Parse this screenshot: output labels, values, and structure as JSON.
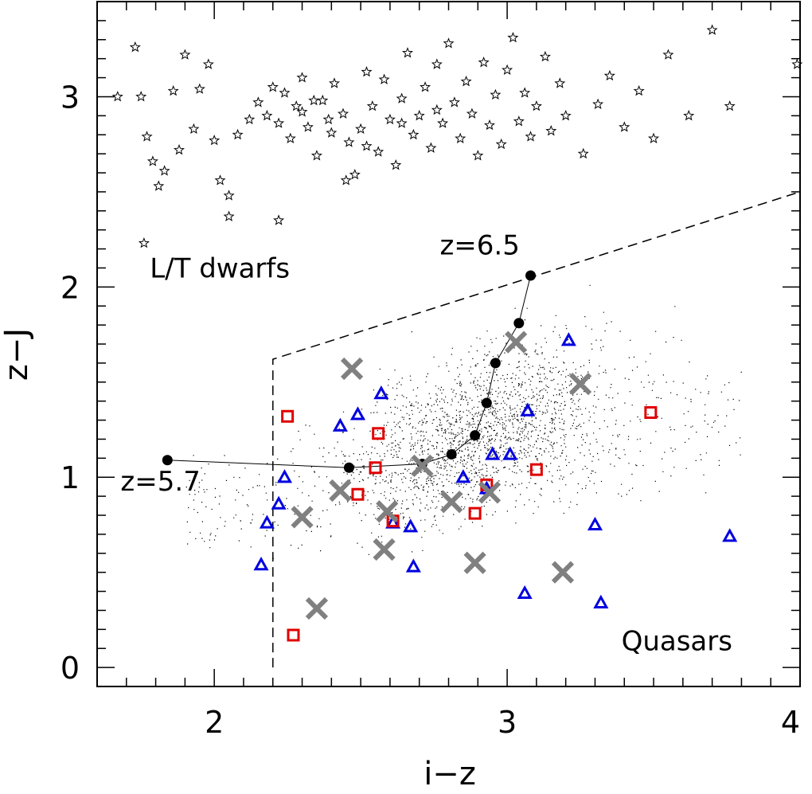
{
  "chart_data": {
    "type": "scatter",
    "xlabel": "i−z",
    "ylabel": "z−J",
    "xlim": [
      1.6,
      4.0
    ],
    "ylim": [
      -0.1,
      3.5
    ],
    "x_ticks": [
      {
        "value": 2,
        "label": "2"
      },
      {
        "value": 3,
        "label": "3"
      },
      {
        "value": 4,
        "label": "4"
      }
    ],
    "y_ticks": [
      {
        "value": 0,
        "label": "0"
      },
      {
        "value": 1,
        "label": "1"
      },
      {
        "value": 2,
        "label": "2"
      },
      {
        "value": 3,
        "label": "3"
      }
    ],
    "grid": false,
    "annotations": [
      {
        "text": "L/T dwarfs",
        "x": 1.78,
        "y": 2.05
      },
      {
        "text": "z=6.5",
        "x": 2.77,
        "y": 2.17
      },
      {
        "text": "z=5.7",
        "x": 1.68,
        "y": 0.93
      },
      {
        "text": "Quasars",
        "x": 3.39,
        "y": 0.09
      }
    ],
    "selection_boundary": {
      "style": "dashed",
      "points": [
        [
          2.2,
          0.0
        ],
        [
          2.2,
          1.62
        ],
        [
          4.0,
          2.5
        ]
      ]
    },
    "track": {
      "name": "",
      "points": [
        [
          1.84,
          1.09
        ],
        [
          2.46,
          1.05
        ],
        [
          2.71,
          1.07
        ],
        [
          2.81,
          1.12
        ],
        [
          2.89,
          1.22
        ],
        [
          2.93,
          1.39
        ],
        [
          2.96,
          1.6
        ],
        [
          3.04,
          1.81
        ],
        [
          3.08,
          2.06
        ]
      ]
    },
    "series": [
      {
        "name": "",
        "marker": "star",
        "color": "#000000",
        "points": [
          [
            1.67,
            3.0
          ],
          [
            1.73,
            3.26
          ],
          [
            1.75,
            3.0
          ],
          [
            1.77,
            2.79
          ],
          [
            1.79,
            2.66
          ],
          [
            1.81,
            2.53
          ],
          [
            1.83,
            2.61
          ],
          [
            1.86,
            3.03
          ],
          [
            1.88,
            2.72
          ],
          [
            1.9,
            3.22
          ],
          [
            1.93,
            2.83
          ],
          [
            1.95,
            3.04
          ],
          [
            1.98,
            3.17
          ],
          [
            2.0,
            2.77
          ],
          [
            2.02,
            2.56
          ],
          [
            2.05,
            2.37
          ],
          [
            2.08,
            2.8
          ],
          [
            2.12,
            2.88
          ],
          [
            2.15,
            2.97
          ],
          [
            2.18,
            2.9
          ],
          [
            2.2,
            3.05
          ],
          [
            2.22,
            2.86
          ],
          [
            2.24,
            3.02
          ],
          [
            2.26,
            2.78
          ],
          [
            2.28,
            2.95
          ],
          [
            2.3,
            3.1
          ],
          [
            2.32,
            2.84
          ],
          [
            2.35,
            2.69
          ],
          [
            2.37,
            2.98
          ],
          [
            2.39,
            2.88
          ],
          [
            2.41,
            3.07
          ],
          [
            2.44,
            2.91
          ],
          [
            2.46,
            2.76
          ],
          [
            2.48,
            2.59
          ],
          [
            2.5,
            2.83
          ],
          [
            2.52,
            3.13
          ],
          [
            2.54,
            2.95
          ],
          [
            2.56,
            2.71
          ],
          [
            2.58,
            3.09
          ],
          [
            2.6,
            2.88
          ],
          [
            2.62,
            2.64
          ],
          [
            2.64,
            2.99
          ],
          [
            2.66,
            3.23
          ],
          [
            2.68,
            2.8
          ],
          [
            2.7,
            2.9
          ],
          [
            2.72,
            3.05
          ],
          [
            2.74,
            2.73
          ],
          [
            2.76,
            3.17
          ],
          [
            2.78,
            2.86
          ],
          [
            2.8,
            3.28
          ],
          [
            2.82,
            2.97
          ],
          [
            2.84,
            2.78
          ],
          [
            2.86,
            3.08
          ],
          [
            2.88,
            2.91
          ],
          [
            2.9,
            2.69
          ],
          [
            2.92,
            3.18
          ],
          [
            2.94,
            2.85
          ],
          [
            2.96,
            3.01
          ],
          [
            2.98,
            2.75
          ],
          [
            3.0,
            3.14
          ],
          [
            3.02,
            3.31
          ],
          [
            3.04,
            2.87
          ],
          [
            3.06,
            3.02
          ],
          [
            3.08,
            2.79
          ],
          [
            3.1,
            2.95
          ],
          [
            3.13,
            3.21
          ],
          [
            3.15,
            2.82
          ],
          [
            3.18,
            3.07
          ],
          [
            3.2,
            2.9
          ],
          [
            3.26,
            2.7
          ],
          [
            3.31,
            2.96
          ],
          [
            3.35,
            3.11
          ],
          [
            3.4,
            2.84
          ],
          [
            3.45,
            3.03
          ],
          [
            3.5,
            2.78
          ],
          [
            3.55,
            3.22
          ],
          [
            3.62,
            2.9
          ],
          [
            3.7,
            3.35
          ],
          [
            3.76,
            2.95
          ],
          [
            3.99,
            3.17
          ],
          [
            1.76,
            2.23
          ],
          [
            2.22,
            2.35
          ],
          [
            2.05,
            2.48
          ],
          [
            2.45,
            2.56
          ],
          [
            2.3,
            2.92
          ],
          [
            2.34,
            2.98
          ],
          [
            2.4,
            2.81
          ],
          [
            2.52,
            2.74
          ],
          [
            2.64,
            2.86
          ],
          [
            2.76,
            2.93
          ]
        ]
      },
      {
        "name": "",
        "marker": "triangle",
        "color": "#0000e0",
        "points": [
          [
            2.16,
            0.54
          ],
          [
            2.18,
            0.76
          ],
          [
            2.22,
            0.86
          ],
          [
            2.24,
            1.0
          ],
          [
            2.43,
            1.27
          ],
          [
            2.49,
            1.33
          ],
          [
            2.57,
            1.44
          ],
          [
            2.61,
            0.76
          ],
          [
            2.67,
            0.74
          ],
          [
            2.68,
            0.53
          ],
          [
            2.85,
            1.0
          ],
          [
            2.93,
            0.94
          ],
          [
            2.95,
            1.12
          ],
          [
            3.01,
            1.12
          ],
          [
            3.07,
            1.35
          ],
          [
            3.06,
            0.39
          ],
          [
            3.21,
            1.72
          ],
          [
            3.3,
            0.75
          ],
          [
            3.32,
            0.34
          ],
          [
            3.76,
            0.69
          ]
        ]
      },
      {
        "name": "",
        "marker": "square",
        "color": "#e00000",
        "points": [
          [
            2.25,
            1.32
          ],
          [
            2.27,
            0.17
          ],
          [
            2.49,
            0.91
          ],
          [
            2.55,
            1.05
          ],
          [
            2.56,
            1.23
          ],
          [
            2.61,
            0.77
          ],
          [
            2.89,
            0.81
          ],
          [
            2.93,
            0.96
          ],
          [
            3.1,
            1.04
          ],
          [
            3.49,
            1.34
          ]
        ]
      },
      {
        "name": "",
        "marker": "x",
        "color": "#808080",
        "points": [
          [
            2.3,
            0.79
          ],
          [
            2.35,
            0.31
          ],
          [
            2.43,
            0.93
          ],
          [
            2.47,
            1.57
          ],
          [
            2.58,
            0.62
          ],
          [
            2.59,
            0.82
          ],
          [
            2.71,
            1.06
          ],
          [
            2.81,
            0.87
          ],
          [
            2.89,
            0.55
          ],
          [
            2.94,
            0.92
          ],
          [
            3.03,
            1.71
          ],
          [
            3.19,
            0.5
          ],
          [
            3.25,
            1.49
          ]
        ]
      }
    ],
    "background_cloud": {
      "name": "",
      "description": "dense field of small black dots (simulated quasar colors)",
      "color": "#000000",
      "approx_count": 2200
    }
  }
}
